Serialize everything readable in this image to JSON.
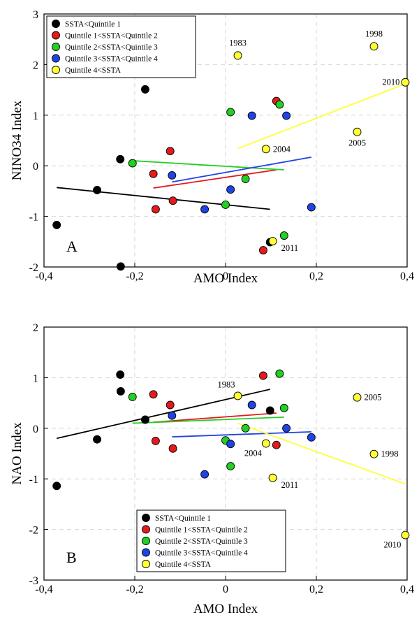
{
  "chart_data": [
    {
      "type": "scatter",
      "panel_label": "A",
      "xlabel": "AMO Index",
      "ylabel": "NINO34 Index",
      "xlim": [
        -0.4,
        0.4
      ],
      "ylim": [
        -2,
        3
      ],
      "xticks": [
        "-0,4",
        "-0,2",
        "0",
        "0,2",
        "0,4"
      ],
      "yticks": [
        "-2",
        "-1",
        "0",
        "1",
        "2",
        "3"
      ],
      "grid": true,
      "legend_position": "top-left",
      "series": [
        {
          "name": "SSTA<Quintile 1",
          "color": "#000000",
          "points": [
            [
              -0.372,
              -1.17
            ],
            [
              -0.283,
              -0.48
            ],
            [
              -0.232,
              0.13
            ],
            [
              -0.231,
              -1.99
            ],
            [
              -0.177,
              1.51
            ],
            [
              0.098,
              -1.51
            ]
          ],
          "fit": [
            [
              -0.372,
              -0.43
            ],
            [
              0.098,
              -0.86
            ]
          ]
        },
        {
          "name": "Quintile 1<SSTA<Quintile 2",
          "color": "#e41a1c",
          "points": [
            [
              -0.159,
              -0.16
            ],
            [
              -0.154,
              -0.86
            ],
            [
              -0.122,
              0.29
            ],
            [
              -0.116,
              -0.69
            ],
            [
              0.083,
              -1.67
            ],
            [
              0.112,
              1.28
            ]
          ],
          "fit": [
            [
              -0.159,
              -0.44
            ],
            [
              0.112,
              -0.08
            ]
          ]
        },
        {
          "name": "Quintile 2<SSTA<Quintile 3",
          "color": "#22d022",
          "points": [
            [
              -0.205,
              0.05
            ],
            [
              0.0,
              -0.77
            ],
            [
              0.011,
              1.06
            ],
            [
              0.044,
              -0.26
            ],
            [
              0.119,
              1.21
            ],
            [
              0.129,
              -1.38
            ]
          ],
          "fit": [
            [
              -0.205,
              0.1
            ],
            [
              0.129,
              -0.08
            ]
          ]
        },
        {
          "name": "Quintile 3<SSTA<Quintile 4",
          "color": "#1f44e6",
          "points": [
            [
              -0.118,
              -0.19
            ],
            [
              -0.046,
              -0.86
            ],
            [
              0.011,
              -0.47
            ],
            [
              0.058,
              0.99
            ],
            [
              0.134,
              0.99
            ],
            [
              0.189,
              -0.82
            ]
          ],
          "fit": [
            [
              -0.118,
              -0.32
            ],
            [
              0.189,
              0.17
            ]
          ]
        },
        {
          "name": "Quintile 4<SSTA",
          "color": "#ffff33",
          "points": [
            [
              0.027,
              2.18
            ],
            [
              0.089,
              0.33
            ],
            [
              0.104,
              -1.49
            ],
            [
              0.29,
              0.67
            ],
            [
              0.327,
              2.36
            ],
            [
              0.396,
              1.65
            ]
          ],
          "fit": [
            [
              0.027,
              0.34
            ],
            [
              0.396,
              1.62
            ]
          ]
        }
      ],
      "annotations": [
        {
          "text": "1983",
          "x": 0.027,
          "y": 2.18,
          "pos": "above"
        },
        {
          "text": "1998",
          "x": 0.327,
          "y": 2.36,
          "pos": "above"
        },
        {
          "text": "2010",
          "x": 0.396,
          "y": 1.65,
          "pos": "left"
        },
        {
          "text": "2004",
          "x": 0.089,
          "y": 0.33,
          "pos": "right"
        },
        {
          "text": "2005",
          "x": 0.29,
          "y": 0.67,
          "pos": "below"
        },
        {
          "text": "2011",
          "x": 0.104,
          "y": -1.49,
          "pos": "belowright"
        }
      ]
    },
    {
      "type": "scatter",
      "panel_label": "B",
      "xlabel": "AMO Index",
      "ylabel": "NAO Index",
      "xlim": [
        -0.4,
        0.4
      ],
      "ylim": [
        -3,
        2
      ],
      "xticks": [
        "-0,4",
        "-0,2",
        "0",
        "0,2",
        "0,4"
      ],
      "yticks": [
        "-3",
        "-2",
        "-1",
        "0",
        "1",
        "2"
      ],
      "grid": true,
      "legend_position": "bottom-center",
      "series": [
        {
          "name": "SSTA<Quintile 1",
          "color": "#000000",
          "points": [
            [
              -0.372,
              -1.14
            ],
            [
              -0.283,
              -0.22
            ],
            [
              -0.232,
              1.06
            ],
            [
              -0.231,
              0.73
            ],
            [
              -0.177,
              0.17
            ],
            [
              0.098,
              0.35
            ]
          ],
          "fit": [
            [
              -0.372,
              -0.2
            ],
            [
              0.098,
              0.77
            ]
          ]
        },
        {
          "name": "Quintile 1<SSTA<Quintile 2",
          "color": "#e41a1c",
          "points": [
            [
              -0.159,
              0.67
            ],
            [
              -0.154,
              -0.25
            ],
            [
              -0.122,
              0.46
            ],
            [
              -0.116,
              -0.4
            ],
            [
              0.083,
              1.04
            ],
            [
              0.112,
              -0.33
            ]
          ],
          "fit": [
            [
              -0.159,
              0.12
            ],
            [
              0.112,
              0.3
            ]
          ]
        },
        {
          "name": "Quintile 2<SSTA<Quintile 3",
          "color": "#22d022",
          "points": [
            [
              -0.205,
              0.62
            ],
            [
              0.0,
              -0.24
            ],
            [
              0.011,
              -0.75
            ],
            [
              0.044,
              0.0
            ],
            [
              0.119,
              1.08
            ],
            [
              0.129,
              0.4
            ]
          ],
          "fit": [
            [
              -0.205,
              0.1
            ],
            [
              0.129,
              0.22
            ]
          ]
        },
        {
          "name": "Quintile 3<SSTA<Quintile 4",
          "color": "#1f44e6",
          "points": [
            [
              -0.118,
              0.25
            ],
            [
              -0.046,
              -0.91
            ],
            [
              0.011,
              -0.31
            ],
            [
              0.058,
              0.46
            ],
            [
              0.134,
              0.0
            ],
            [
              0.189,
              -0.18
            ]
          ],
          "fit": [
            [
              -0.118,
              -0.17
            ],
            [
              0.189,
              -0.07
            ]
          ]
        },
        {
          "name": "Quintile 4<SSTA",
          "color": "#ffff33",
          "points": [
            [
              0.027,
              0.64
            ],
            [
              0.089,
              -0.3
            ],
            [
              0.104,
              -0.98
            ],
            [
              0.29,
              0.61
            ],
            [
              0.327,
              -0.51
            ],
            [
              0.396,
              -2.11
            ]
          ],
          "fit": [
            [
              0.027,
              0.1
            ],
            [
              0.396,
              -1.1
            ]
          ]
        }
      ],
      "annotations": [
        {
          "text": "1983",
          "x": 0.027,
          "y": 0.64,
          "pos": "aboveleft"
        },
        {
          "text": "2005",
          "x": 0.29,
          "y": 0.61,
          "pos": "right"
        },
        {
          "text": "1998",
          "x": 0.327,
          "y": -0.51,
          "pos": "right"
        },
        {
          "text": "2004",
          "x": 0.089,
          "y": -0.3,
          "pos": "belowleft"
        },
        {
          "text": "2011",
          "x": 0.104,
          "y": -0.98,
          "pos": "belowright"
        },
        {
          "text": "2010",
          "x": 0.396,
          "y": -2.11,
          "pos": "belowleft"
        }
      ]
    }
  ]
}
